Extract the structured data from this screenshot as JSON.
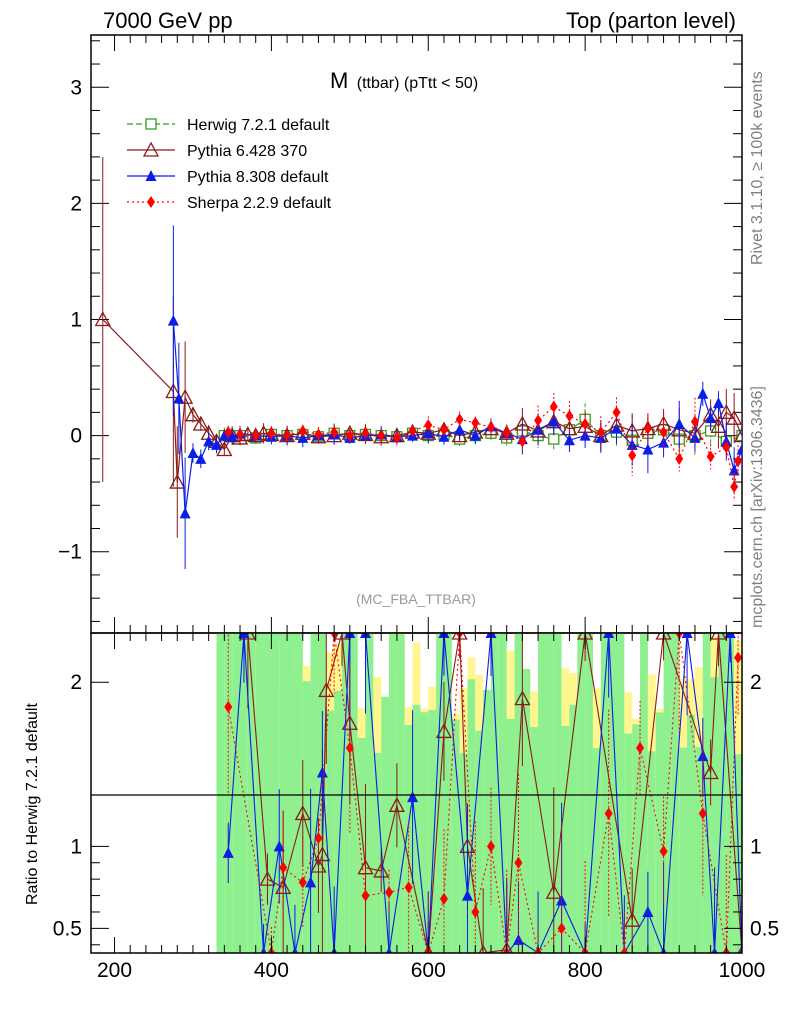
{
  "header": {
    "left": "7000 GeV pp",
    "right": "Top (parton level)"
  },
  "plot_title_main": "M",
  "plot_title_sub": "(ttbar) (pTtt < 50)",
  "analysis_label": "(MC_FBA_TTBAR)",
  "side_text_top": "Rivet 3.1.10, ≥ 100k events",
  "side_text_bottom": "mcplots.cern.ch [arXiv:1306.3436]",
  "ratio_ylabel": "Ratio to Herwig 7.2.1 default",
  "colors": {
    "herwig": "#3a9a1a",
    "pythia6": "#8b1a1a",
    "pythia8": "#0a1ee6",
    "sherpa": "#ff0000",
    "band_green": "#8ef08e",
    "band_yellow": "#fff68f"
  },
  "legend": [
    {
      "label": "Herwig 7.2.1 default",
      "marker": "open-square",
      "line": "dashed"
    },
    {
      "label": "Pythia 6.428 370",
      "marker": "open-triangle",
      "line": "solid"
    },
    {
      "label": "Pythia 8.308 default",
      "marker": "filled-triangle",
      "line": "solid"
    },
    {
      "label": "Sherpa 2.2.9 default",
      "marker": "filled-diamond",
      "line": "dotted"
    }
  ],
  "chart_data": [
    {
      "type": "line",
      "panel": "main",
      "xlim": [
        170,
        1000
      ],
      "ylim": [
        -1.7,
        3.45
      ],
      "x_ticks": [
        200,
        400,
        600,
        800,
        1000
      ],
      "y_ticks": [
        -1,
        0,
        1,
        2,
        3
      ],
      "y_tick_labels": [
        "−1",
        "0",
        "1",
        "2",
        "3"
      ],
      "series": [
        {
          "name": "Herwig 7.2.1 default",
          "x": [
            340,
            360,
            380,
            400,
            420,
            440,
            460,
            480,
            500,
            520,
            540,
            560,
            580,
            600,
            620,
            640,
            660,
            680,
            700,
            720,
            740,
            760,
            780,
            800,
            820,
            840,
            860,
            880,
            900,
            920,
            940,
            960,
            980,
            1000
          ],
          "y": [
            0.0,
            0.0,
            -0.02,
            0.01,
            0.0,
            0.01,
            -0.01,
            0.02,
            0.0,
            0.01,
            0.0,
            -0.01,
            0.02,
            0.0,
            0.01,
            -0.03,
            0.0,
            0.02,
            -0.02,
            0.04,
            0.0,
            -0.03,
            0.05,
            0.14,
            0.0,
            0.03,
            -0.04,
            0.02,
            0.05,
            -0.03,
            0.0,
            0.04,
            -0.05,
            0.0
          ]
        },
        {
          "name": "Pythia 6.428 370",
          "x": [
            185,
            275,
            280,
            290,
            300,
            310,
            320,
            330,
            340,
            350,
            360,
            370,
            380,
            390,
            400,
            420,
            440,
            460,
            480,
            500,
            520,
            540,
            560,
            580,
            600,
            620,
            640,
            660,
            680,
            700,
            720,
            740,
            760,
            780,
            800,
            820,
            840,
            860,
            880,
            900,
            920,
            940,
            960,
            970,
            980,
            990,
            1000
          ],
          "y": [
            1.0,
            0.38,
            -0.4,
            0.33,
            0.18,
            0.1,
            0.02,
            -0.05,
            -0.12,
            0.0,
            -0.02,
            0.01,
            0.0,
            0.02,
            0.01,
            0.0,
            0.02,
            -0.01,
            0.0,
            0.02,
            0.01,
            -0.01,
            0.0,
            0.03,
            0.02,
            0.05,
            0.0,
            0.03,
            0.06,
            0.02,
            0.1,
            0.04,
            0.12,
            0.06,
            0.08,
            0.0,
            0.09,
            0.04,
            0.06,
            0.1,
            0.05,
            0.02,
            0.18,
            0.08,
            0.2,
            0.15,
            0.0
          ]
        },
        {
          "name": "Pythia 8.308 default",
          "x": [
            275,
            282,
            290,
            300,
            310,
            320,
            330,
            340,
            350,
            360,
            380,
            400,
            420,
            440,
            460,
            480,
            500,
            520,
            540,
            560,
            580,
            600,
            620,
            640,
            660,
            680,
            700,
            720,
            740,
            760,
            780,
            800,
            820,
            840,
            860,
            880,
            900,
            920,
            940,
            950,
            960,
            970,
            980,
            990,
            1000
          ],
          "y": [
            0.99,
            0.32,
            -0.67,
            -0.15,
            -0.2,
            -0.05,
            -0.08,
            0.0,
            -0.01,
            0.02,
            0.0,
            -0.01,
            0.0,
            -0.02,
            0.0,
            0.01,
            -0.02,
            0.0,
            0.01,
            -0.01,
            0.0,
            0.02,
            -0.01,
            0.05,
            0.0,
            0.08,
            0.02,
            -0.03,
            0.05,
            0.12,
            -0.04,
            0.0,
            -0.02,
            0.06,
            -0.08,
            -0.12,
            -0.06,
            0.1,
            -0.02,
            0.36,
            0.15,
            0.28,
            -0.05,
            -0.3,
            -0.12
          ]
        },
        {
          "name": "Sherpa 2.2.9 default",
          "x": [
            345,
            360,
            380,
            400,
            420,
            440,
            460,
            480,
            500,
            520,
            540,
            560,
            580,
            600,
            620,
            640,
            660,
            680,
            700,
            720,
            740,
            760,
            780,
            800,
            820,
            840,
            860,
            880,
            900,
            920,
            940,
            960,
            980,
            990,
            995
          ],
          "y": [
            0.03,
            0.01,
            0.0,
            0.02,
            0.0,
            0.04,
            0.01,
            0.03,
            0.0,
            0.02,
            0.0,
            -0.02,
            0.04,
            0.09,
            0.05,
            0.14,
            0.11,
            0.07,
            0.02,
            -0.05,
            0.13,
            0.25,
            0.17,
            0.1,
            0.03,
            0.2,
            -0.17,
            0.06,
            0.03,
            -0.2,
            0.12,
            -0.18,
            -0.1,
            -0.44,
            -0.22
          ]
        }
      ]
    },
    {
      "type": "line",
      "panel": "ratio",
      "ylabel": "Ratio to Herwig 7.2.1 default",
      "xlim": [
        170,
        1000
      ],
      "ylim": [
        0.35,
        2.3
      ],
      "x_ticks": [
        200,
        400,
        600,
        800,
        1000
      ],
      "x_tick_labels": [
        "200",
        "400",
        "600",
        "800",
        "1000"
      ],
      "y_ticks": [
        0.5,
        1,
        2
      ],
      "y_tick_labels": [
        "0.5",
        "1",
        "2"
      ],
      "reference_line": 1,
      "series": [
        {
          "name": "Pythia 6.428 370",
          "x": [
            370,
            395,
            415,
            440,
            460,
            465,
            470,
            490,
            500,
            520,
            540,
            560,
            600,
            620,
            640,
            650,
            670,
            700,
            720,
            760,
            800,
            860,
            900,
            960,
            970,
            1000
          ],
          "y": [
            2.3,
            0.8,
            0.75,
            1.2,
            0.88,
            0.95,
            1.95,
            2.3,
            1.75,
            0.87,
            0.85,
            1.25,
            0.35,
            1.7,
            2.3,
            1.0,
            0.35,
            0.37,
            1.9,
            0.72,
            2.3,
            0.55,
            2.3,
            1.45,
            2.3,
            0.35
          ]
        },
        {
          "name": "Pythia 8.308 default",
          "x": [
            345,
            365,
            390,
            410,
            430,
            450,
            465,
            480,
            500,
            520,
            550,
            580,
            600,
            620,
            650,
            680,
            700,
            715,
            740,
            770,
            800,
            830,
            850,
            880,
            900,
            930,
            950,
            965,
            985,
            1000
          ],
          "y": [
            0.96,
            2.3,
            0.35,
            1.0,
            0.35,
            0.78,
            1.45,
            0.35,
            2.3,
            2.3,
            0.35,
            1.3,
            0.35,
            2.3,
            0.7,
            2.3,
            0.35,
            0.43,
            0.35,
            0.67,
            0.35,
            2.3,
            0.35,
            0.6,
            0.35,
            2.3,
            1.55,
            0.35,
            2.3,
            0.35
          ]
        },
        {
          "name": "Sherpa 2.2.9 default",
          "x": [
            345,
            400,
            415,
            440,
            460,
            480,
            500,
            520,
            550,
            575,
            600,
            620,
            640,
            660,
            680,
            700,
            715,
            740,
            770,
            800,
            830,
            850,
            870,
            900,
            920,
            950,
            980,
            995
          ],
          "y": [
            1.85,
            0.35,
            0.87,
            0.78,
            1.05,
            2.3,
            1.6,
            0.7,
            0.72,
            0.75,
            0.35,
            0.68,
            2.3,
            0.6,
            1.0,
            0.35,
            0.9,
            0.35,
            0.5,
            0.35,
            1.2,
            0.35,
            1.6,
            0.97,
            2.3,
            1.2,
            0.35,
            2.15
          ]
        }
      ]
    }
  ]
}
